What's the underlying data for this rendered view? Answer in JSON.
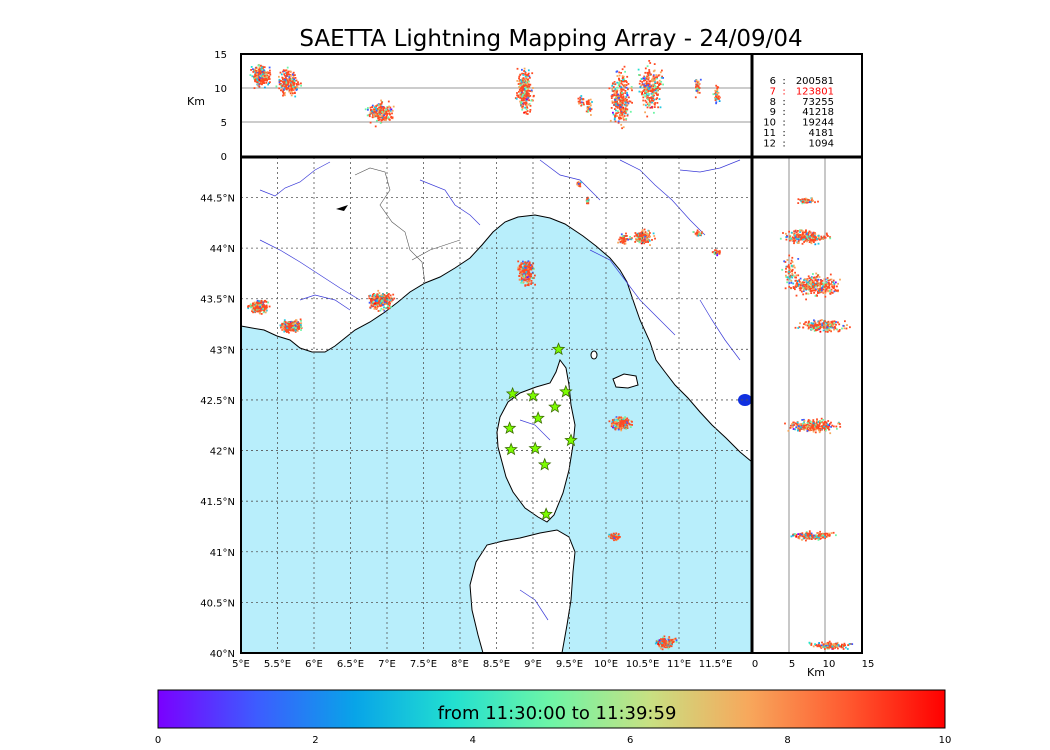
{
  "title": "SAETTA Lightning Mapping Array - 24/09/04",
  "colors": {
    "sea": "#b8eefb",
    "coast": "#000000",
    "rivers": "#3b3bd8",
    "borders": "#555555",
    "grid": "#555555",
    "station_fill": "#7cfc00",
    "station_stroke": "#3a6b00",
    "highlight": "#ff0000"
  },
  "top_panel": {
    "ylabel": "Km",
    "y_ticks": [
      "0",
      "5",
      "10",
      "15"
    ]
  },
  "right_panel": {
    "xlabel": "Km",
    "x_ticks": [
      "0",
      "5",
      "10",
      "15"
    ]
  },
  "map": {
    "lon_ticks": [
      "5°E",
      "5.5°E",
      "6°E",
      "6.5°E",
      "7°E",
      "7.5°E",
      "8°E",
      "8.5°E",
      "9°E",
      "9.5°E",
      "10°E",
      "10.5°E",
      "11°E",
      "11.5°E"
    ],
    "lat_ticks": [
      "40°N",
      "40.5°N",
      "41°N",
      "41.5°N",
      "42°N",
      "42.5°N",
      "43°N",
      "43.5°N",
      "44°N",
      "44.5°N"
    ]
  },
  "legend_counts": [
    {
      "label": "6",
      "value": "200581",
      "highlight": false
    },
    {
      "label": "7",
      "value": "123801",
      "highlight": true
    },
    {
      "label": "8",
      "value": "73255",
      "highlight": false
    },
    {
      "label": "9",
      "value": "41218",
      "highlight": false
    },
    {
      "label": "10",
      "value": "19244",
      "highlight": false
    },
    {
      "label": "11",
      "value": "4181",
      "highlight": false
    },
    {
      "label": "12",
      "value": "1094",
      "highlight": false
    }
  ],
  "colorbar": {
    "text": "from 11:30:00 to 11:39:59",
    "ticks": [
      "0",
      "2",
      "4",
      "6",
      "8",
      "10"
    ],
    "gradient": [
      "#7a00ff",
      "#3d5cff",
      "#08a4e8",
      "#22e0d0",
      "#6ef5a6",
      "#c8e082",
      "#f7a85c",
      "#ff5a30",
      "#ff0000"
    ]
  },
  "stations": [
    {
      "lon": 9.35,
      "lat": 43.0
    },
    {
      "lon": 8.72,
      "lat": 42.56
    },
    {
      "lon": 9.0,
      "lat": 42.54
    },
    {
      "lon": 9.45,
      "lat": 42.58
    },
    {
      "lon": 9.3,
      "lat": 42.43
    },
    {
      "lon": 9.07,
      "lat": 42.32
    },
    {
      "lon": 8.68,
      "lat": 42.22
    },
    {
      "lon": 9.52,
      "lat": 42.1
    },
    {
      "lon": 8.7,
      "lat": 42.01
    },
    {
      "lon": 9.03,
      "lat": 42.02
    },
    {
      "lon": 9.16,
      "lat": 41.86
    },
    {
      "lon": 9.18,
      "lat": 41.37
    }
  ]
}
